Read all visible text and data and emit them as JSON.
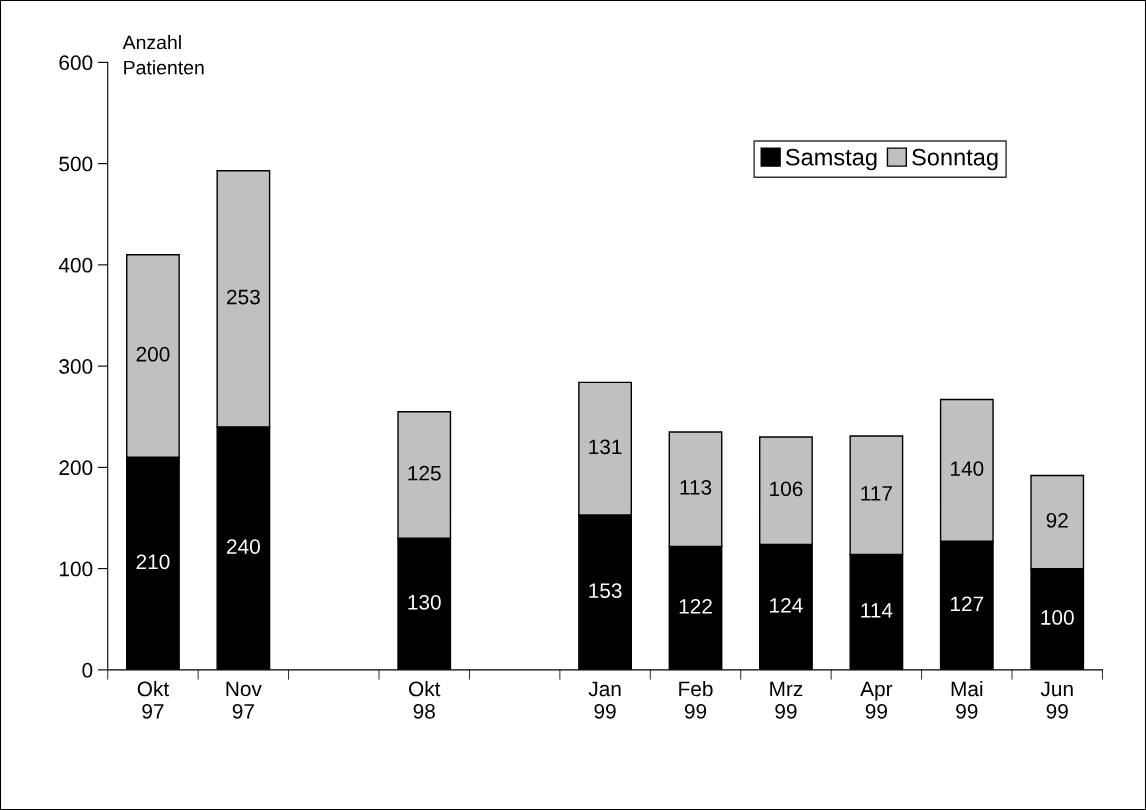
{
  "chart_data": {
    "type": "bar",
    "stacked": true,
    "ylabel": "Anzahl\nPatienten",
    "categories": [
      "Okt\n97",
      "Nov\n97",
      null,
      "Okt\n98",
      null,
      "Jan\n99",
      "Feb\n99",
      "Mrz\n99",
      "Apr\n99",
      "Mai\n99",
      "Jun\n99"
    ],
    "series": [
      {
        "name": "Samstag",
        "color": "#000000",
        "values": [
          210,
          240,
          null,
          130,
          null,
          153,
          122,
          124,
          114,
          127,
          100
        ]
      },
      {
        "name": "Sonntag",
        "color": "#c0c0c0",
        "values": [
          200,
          253,
          null,
          125,
          null,
          131,
          113,
          106,
          117,
          140,
          92
        ]
      }
    ],
    "ylim": [
      0,
      600
    ],
    "yticks": [
      0,
      100,
      200,
      300,
      400,
      500,
      600
    ],
    "data_labels": true,
    "grid": false,
    "legend": "top right"
  }
}
